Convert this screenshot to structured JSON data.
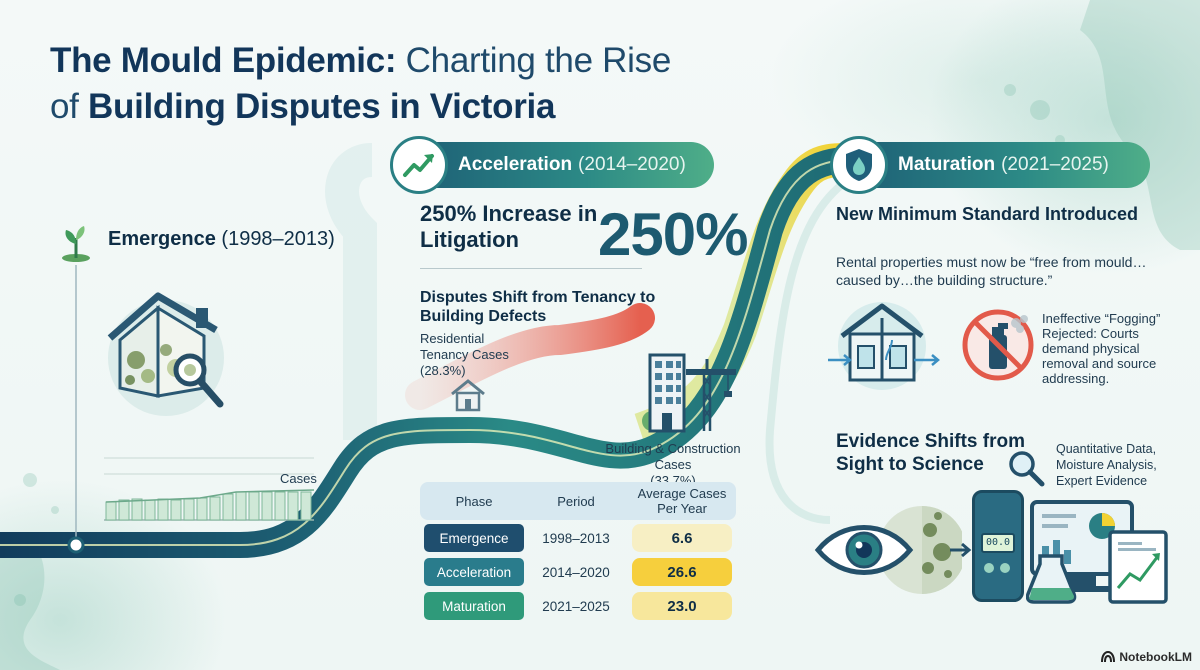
{
  "title": {
    "part1": "The Mould Epidemic:",
    "part2": " Charting the Rise",
    "part3": "of ",
    "part4": "Building Disputes in Victoria"
  },
  "emergence": {
    "name": "Emergence",
    "years": "(1998–2013)",
    "chart_label": "Cases"
  },
  "acceleration": {
    "name": "Acceleration",
    "years": "(2014–2020)",
    "stat_heading": "250% Increase in Litigation",
    "stat_value": "250%",
    "shift_heading": "Disputes Shift from Tenancy to Building Defects",
    "residential_label": "Residential Tenancy Cases",
    "residential_pct": "(28.3%)",
    "building_label": "Building & Construction Cases",
    "building_pct": "(33.7%)"
  },
  "maturation": {
    "name": "Maturation",
    "years": "(2021–2025)",
    "standard_heading": "New Minimum Standard Introduced",
    "standard_body": "Rental properties must now be “free from mould…caused by…the building structure.”",
    "fogging_text": "Ineffective “Fogging” Rejected: Courts demand physical removal and source addressing.",
    "evidence_heading": "Evidence Shifts from Sight to Science",
    "evidence_list": "Quantitative Data, Moisture Analysis, Expert Evidence",
    "meter_readout": "00.0"
  },
  "table": {
    "headers": [
      "Phase",
      "Period",
      "Average Cases Per Year"
    ],
    "rows": [
      {
        "phase": "Emergence",
        "period": "1998–2013",
        "value": "6.6",
        "color": "#1f4e6e",
        "val_bg": "#f7efc4"
      },
      {
        "phase": "Acceleration",
        "period": "2014–2020",
        "value": "26.6",
        "color": "#2a7c8c",
        "val_bg": "#f6cf3d"
      },
      {
        "phase": "Maturation",
        "period": "2021–2025",
        "value": "23.0",
        "color": "#2f9a7a",
        "val_bg": "#f7e79c"
      }
    ]
  },
  "colors": {
    "navy": "#12365a",
    "teal": "#2a7f84",
    "green": "#4fae88",
    "yellow": "#f2d233",
    "red": "#e25a4a"
  },
  "brand": "NotebookLM"
}
